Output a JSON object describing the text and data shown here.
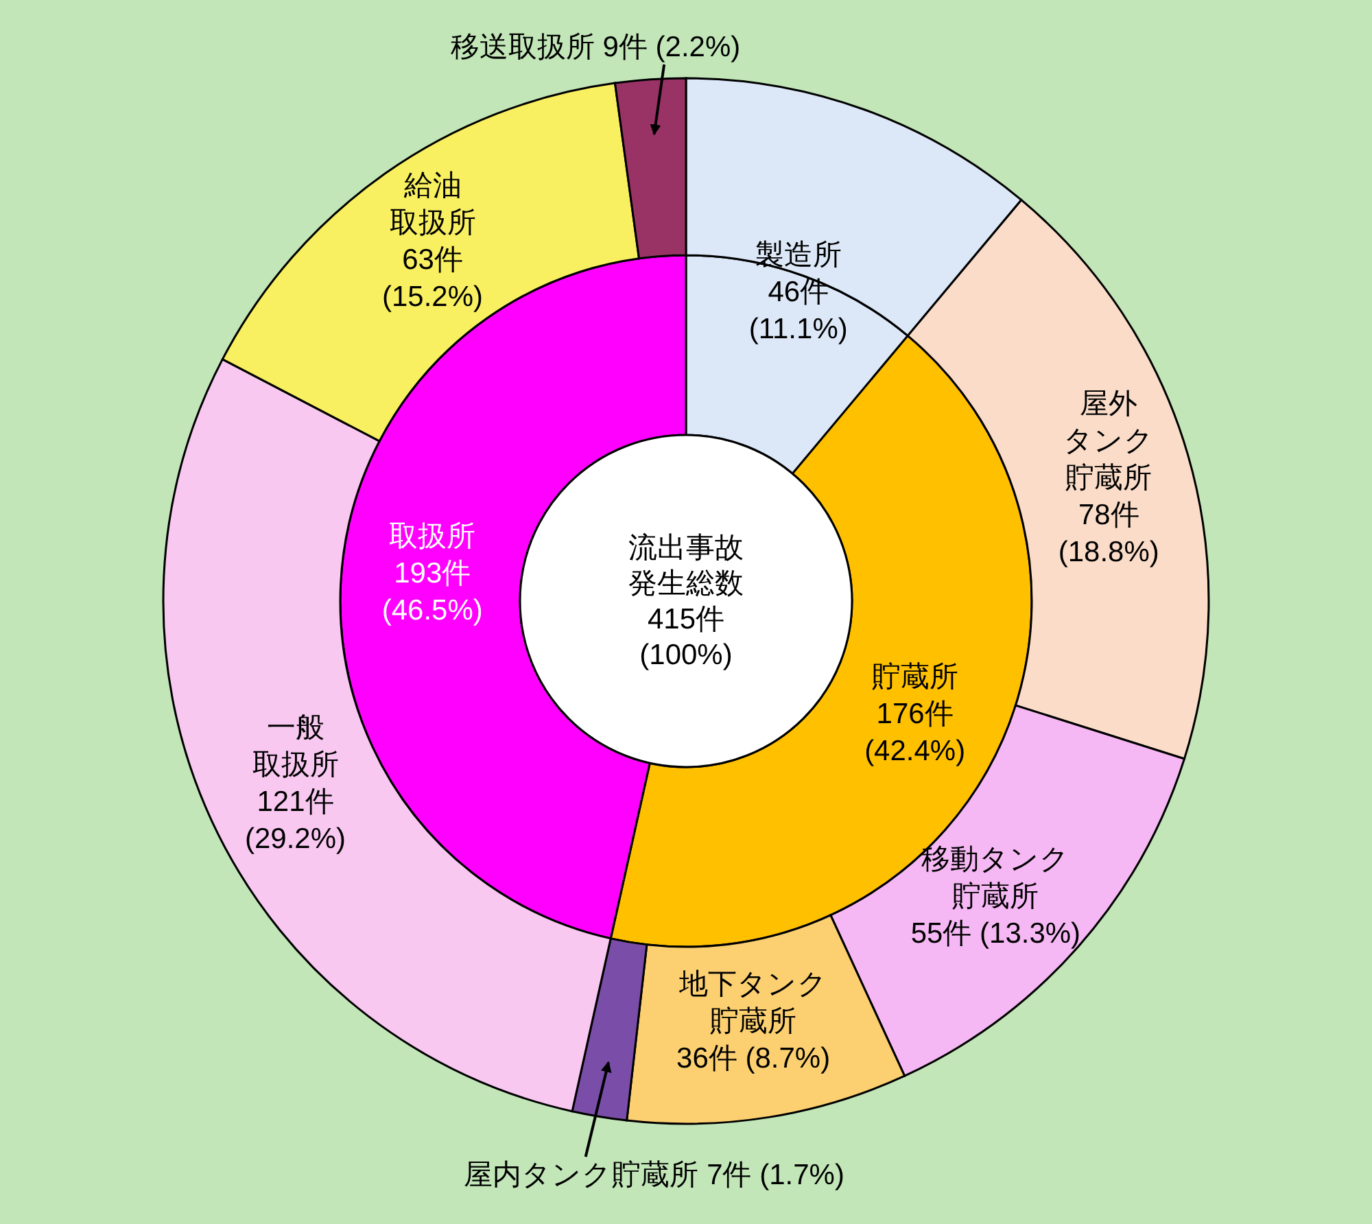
{
  "chart_data": [
    {
      "type": "donut",
      "categories": [
        "製造所",
        "屋外タンク貯蔵所",
        "移動タンク貯蔵所",
        "地下タンク貯蔵所",
        "屋内タンク貯蔵所",
        "一般取扱所",
        "給油取扱所",
        "移送取扱所"
      ],
      "values": [
        46,
        78,
        55,
        36,
        7,
        121,
        63,
        9
      ],
      "value_labels": [
        "46件 (11.1%)",
        "78件 (18.8%)",
        "55件 (13.3%)",
        "36件 (8.7%)",
        "7件 (1.7%)",
        "121件 (29.2%)",
        "63件 (15.2%)",
        "9件 (2.2%)"
      ],
      "colors": [
        "#dce8f8",
        "#fadcc8",
        "#f6b8f4",
        "#fcd070",
        "#7a4ea8",
        "#f8c8f0",
        "#f8f060",
        "#993366"
      ]
    },
    {
      "type": "donut",
      "title": "流出事故発生総数 415件 (100%)",
      "categories": [
        null,
        "貯蔵所",
        "取扱所"
      ],
      "values": [
        46,
        176,
        193
      ],
      "value_labels": [
        null,
        "176件 (42.4%)",
        "193件 (46.5%)"
      ],
      "colors": [
        "#dce8f8",
        "#ffc000",
        "#ff00ff"
      ]
    }
  ]
}
